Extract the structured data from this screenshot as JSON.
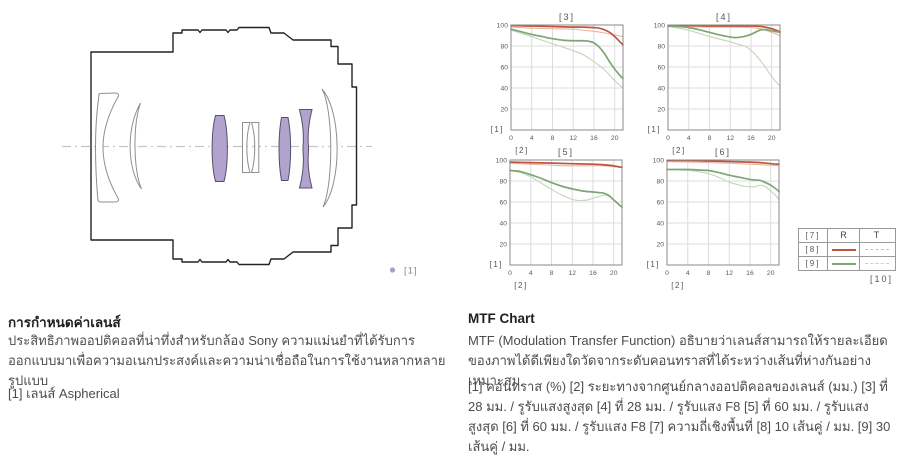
{
  "page": {
    "background": "#ffffff"
  },
  "lens_panel": {
    "marker_label": "[1]",
    "aspherical_fill": "#b1a3cd",
    "aspherical_stroke": "#55506b",
    "element_outline": "#8f8f8f",
    "barrel_outline": "#222222",
    "axis_color": "#c6c6c6",
    "marker_dot_color": "#a89fc7"
  },
  "left_section": {
    "title": "การกำหนดค่าเลนส์",
    "body": "ประสิทธิภาพออปติคอลที่น่าทึ่งสำหรับกล้อง Sony ความแม่นยำที่ได้รับการออกแบบมาเพื่อความอเนกประสงค์และความน่าเชื่อถือในการใช้งานหลากหลายรูปแบบ",
    "footnote": "[1] เลนส์ Aspherical"
  },
  "right_section": {
    "title": "MTF Chart",
    "body": "MTF (Modulation Transfer Function) อธิบายว่าเลนส์สามารถให้รายละเอียดของภาพได้ดีเพียงใดวัดจากระดับคอนทราสที่ได้ระหว่างเส้นที่ห่างกันอย่างเหมาะสม",
    "key": "[1] คอนทราส (%) [2] ระยะทางจากศูนย์กลางออปติคอลของเลนส์ (มม.) [3] ที่ 28 มม. / รูรับแสงสูงสุด [4] ที่ 28 มม. / รูรับแสง F8 [5] ที่ 60 มม. / รูรับแสงสูงสุด [6] ที่ 60 มม. / รูรับแสง F8 [7] ความถี่เชิงพื้นที่ [8] 10 เส้นคู่ / มม. [9] 30 เส้นคู่ / มม."
  },
  "colors": {
    "r10": "#c0543d",
    "t10": "#ecb5a3",
    "r30": "#7ca674",
    "t30": "#c3d6b8",
    "grid": "#dcdcdc",
    "border": "#8a8a8a",
    "tick_text": "#5a5a5a"
  },
  "legend": {
    "header": [
      "[7]",
      "R",
      "T"
    ],
    "rows": [
      {
        "label": "[8]",
        "r_color": "#c0543d",
        "t_color": "#ecb5a3"
      },
      {
        "label": "[9]",
        "r_color": "#7ca674",
        "t_color": "#c3d6b8"
      }
    ],
    "note": "[10]"
  },
  "chart_data": [
    {
      "type": "line",
      "title": "[3]",
      "ylabel": "[1]",
      "xlabel": "[2]",
      "xlim": [
        0,
        21.6
      ],
      "ylim": [
        0,
        100
      ],
      "x_ticks": [
        0,
        4,
        8,
        12,
        16,
        20
      ],
      "y_ticks": [
        20,
        40,
        60,
        80,
        100
      ],
      "grid": true,
      "legend_position": "external-table",
      "series": [
        {
          "name": "R 10 lines/mm",
          "color_key": "r10",
          "points": [
            [
              0,
              99.5
            ],
            [
              4,
              99
            ],
            [
              8,
              98.5
            ],
            [
              12,
              98
            ],
            [
              14,
              98
            ],
            [
              16,
              97.5
            ],
            [
              17,
              97
            ],
            [
              18,
              95.5
            ],
            [
              19,
              93
            ],
            [
              20,
              89
            ],
            [
              21,
              84
            ],
            [
              21.6,
              81
            ]
          ]
        },
        {
          "name": "T 10 lines/mm",
          "color_key": "t10",
          "points": [
            [
              0,
              98
            ],
            [
              4,
              97
            ],
            [
              8,
              96.5
            ],
            [
              12,
              96
            ],
            [
              14,
              95
            ],
            [
              16,
              94
            ],
            [
              18,
              92.5
            ],
            [
              20,
              90.5
            ],
            [
              21.6,
              89
            ]
          ]
        },
        {
          "name": "R 30 lines/mm",
          "color_key": "r30",
          "points": [
            [
              0,
              96
            ],
            [
              2,
              93.5
            ],
            [
              4,
              91
            ],
            [
              6,
              89
            ],
            [
              8,
              87
            ],
            [
              10,
              85.5
            ],
            [
              12,
              85
            ],
            [
              14,
              85
            ],
            [
              15,
              84.5
            ],
            [
              16,
              83
            ],
            [
              17,
              79
            ],
            [
              18,
              73
            ],
            [
              19,
              65
            ],
            [
              20,
              58
            ],
            [
              21,
              52
            ],
            [
              21.6,
              49
            ]
          ]
        },
        {
          "name": "T 30 lines/mm",
          "color_key": "t30",
          "points": [
            [
              0,
              95
            ],
            [
              2,
              92
            ],
            [
              4,
              89
            ],
            [
              6,
              85.5
            ],
            [
              8,
              82
            ],
            [
              10,
              79
            ],
            [
              12,
              75.5
            ],
            [
              14,
              71.5
            ],
            [
              16,
              65
            ],
            [
              18,
              57.5
            ],
            [
              20,
              47
            ],
            [
              21.6,
              40
            ]
          ]
        }
      ]
    },
    {
      "type": "line",
      "title": "[4]",
      "ylabel": "[1]",
      "xlabel": "[2]",
      "xlim": [
        0,
        21.6
      ],
      "ylim": [
        0,
        100
      ],
      "x_ticks": [
        0,
        4,
        8,
        12,
        16,
        20
      ],
      "y_ticks": [
        20,
        40,
        60,
        80,
        100
      ],
      "grid": true,
      "legend_position": "external-table",
      "series": [
        {
          "name": "R 10 lines/mm",
          "color_key": "r10",
          "points": [
            [
              0,
              99.5
            ],
            [
              4,
              99.5
            ],
            [
              8,
              99
            ],
            [
              12,
              99
            ],
            [
              16,
              99
            ],
            [
              18,
              98.5
            ],
            [
              20,
              96.5
            ],
            [
              21.6,
              93.5
            ]
          ]
        },
        {
          "name": "T 10 lines/mm",
          "color_key": "t10",
          "points": [
            [
              0,
              99
            ],
            [
              4,
              98.5
            ],
            [
              8,
              98
            ],
            [
              12,
              98
            ],
            [
              16,
              97.5
            ],
            [
              18,
              96
            ],
            [
              20,
              93
            ],
            [
              21.6,
              90
            ]
          ]
        },
        {
          "name": "R 30 lines/mm",
          "color_key": "r30",
          "points": [
            [
              0,
              99
            ],
            [
              2,
              98.5
            ],
            [
              4,
              97.5
            ],
            [
              6,
              95.5
            ],
            [
              8,
              93
            ],
            [
              10,
              90.5
            ],
            [
              12,
              88.5
            ],
            [
              13,
              88
            ],
            [
              14,
              88.5
            ],
            [
              15,
              89.5
            ],
            [
              16,
              91
            ],
            [
              17,
              93.5
            ],
            [
              18,
              95.5
            ],
            [
              19,
              95.5
            ],
            [
              20,
              94.5
            ],
            [
              21.6,
              93
            ]
          ]
        },
        {
          "name": "T 30 lines/mm",
          "color_key": "t30",
          "points": [
            [
              0,
              98.5
            ],
            [
              2,
              97
            ],
            [
              4,
              95
            ],
            [
              6,
              92
            ],
            [
              8,
              89
            ],
            [
              10,
              86.5
            ],
            [
              12,
              84
            ],
            [
              14,
              81
            ],
            [
              15,
              79.5
            ],
            [
              16,
              76
            ],
            [
              17,
              71
            ],
            [
              18,
              65
            ],
            [
              19,
              58
            ],
            [
              20,
              51
            ],
            [
              21,
              45
            ],
            [
              21.6,
              42
            ]
          ]
        }
      ]
    },
    {
      "type": "line",
      "title": "[5]",
      "ylabel": "[1]",
      "xlabel": "[2]",
      "xlim": [
        0,
        21.6
      ],
      "ylim": [
        0,
        100
      ],
      "x_ticks": [
        0,
        4,
        8,
        12,
        16,
        20
      ],
      "y_ticks": [
        20,
        40,
        60,
        80,
        100
      ],
      "grid": true,
      "legend_position": "external-table",
      "series": [
        {
          "name": "R 10 lines/mm",
          "color_key": "r10",
          "points": [
            [
              0,
              98
            ],
            [
              4,
              97.5
            ],
            [
              8,
              97
            ],
            [
              12,
              96.5
            ],
            [
              16,
              96
            ],
            [
              18,
              95.5
            ],
            [
              20,
              94.5
            ],
            [
              21.6,
              93
            ]
          ]
        },
        {
          "name": "T 10 lines/mm",
          "color_key": "t10",
          "points": [
            [
              0,
              97
            ],
            [
              4,
              96
            ],
            [
              8,
              95
            ],
            [
              10,
              94.5
            ],
            [
              12,
              94.5
            ],
            [
              16,
              94.5
            ],
            [
              18,
              94.5
            ],
            [
              20,
              93.5
            ],
            [
              21.6,
              93
            ]
          ]
        },
        {
          "name": "R 30 lines/mm",
          "color_key": "r30",
          "points": [
            [
              0,
              90
            ],
            [
              2,
              89
            ],
            [
              4,
              86
            ],
            [
              6,
              82.5
            ],
            [
              8,
              78.5
            ],
            [
              10,
              75
            ],
            [
              12,
              72.5
            ],
            [
              14,
              70.5
            ],
            [
              16,
              69.5
            ],
            [
              17,
              69
            ],
            [
              18,
              68.5
            ],
            [
              19,
              66.5
            ],
            [
              20,
              62
            ],
            [
              21,
              57.5
            ],
            [
              21.6,
              55
            ]
          ]
        },
        {
          "name": "T 30 lines/mm",
          "color_key": "t30",
          "points": [
            [
              0,
              90
            ],
            [
              2,
              88
            ],
            [
              4,
              84
            ],
            [
              6,
              78
            ],
            [
              8,
              72
            ],
            [
              10,
              66.5
            ],
            [
              12,
              62.5
            ],
            [
              13,
              61.5
            ],
            [
              14,
              61.5
            ],
            [
              15,
              62
            ],
            [
              16,
              63.5
            ],
            [
              17,
              65
            ],
            [
              18,
              66.5
            ],
            [
              19,
              65.5
            ],
            [
              20,
              62.5
            ],
            [
              21,
              58
            ],
            [
              21.6,
              55.5
            ]
          ]
        }
      ]
    },
    {
      "type": "line",
      "title": "[6]",
      "ylabel": "[1]",
      "xlabel": "[2]",
      "xlim": [
        0,
        21.6
      ],
      "ylim": [
        0,
        100
      ],
      "x_ticks": [
        0,
        4,
        8,
        12,
        16,
        20
      ],
      "y_ticks": [
        20,
        40,
        60,
        80,
        100
      ],
      "grid": true,
      "legend_position": "external-table",
      "series": [
        {
          "name": "R 10 lines/mm",
          "color_key": "r10",
          "points": [
            [
              0,
              99.5
            ],
            [
              4,
              99.5
            ],
            [
              8,
              99
            ],
            [
              12,
              98.5
            ],
            [
              16,
              98
            ],
            [
              18,
              97.5
            ],
            [
              20,
              96.5
            ],
            [
              21.6,
              96
            ]
          ]
        },
        {
          "name": "T 10 lines/mm",
          "color_key": "t10",
          "points": [
            [
              0,
              98.5
            ],
            [
              4,
              98
            ],
            [
              8,
              97.5
            ],
            [
              12,
              97
            ],
            [
              16,
              96
            ],
            [
              18,
              95.5
            ],
            [
              20,
              95
            ],
            [
              21.6,
              94.5
            ]
          ]
        },
        {
          "name": "R 30 lines/mm",
          "color_key": "r30",
          "points": [
            [
              0,
              91
            ],
            [
              4,
              91
            ],
            [
              6,
              90.5
            ],
            [
              8,
              90
            ],
            [
              10,
              88
            ],
            [
              12,
              85.5
            ],
            [
              14,
              83.5
            ],
            [
              16,
              81.5
            ],
            [
              17,
              81
            ],
            [
              18,
              80.5
            ],
            [
              19,
              78.5
            ],
            [
              20,
              76
            ],
            [
              21,
              72.5
            ],
            [
              21.6,
              70
            ]
          ]
        },
        {
          "name": "T 30 lines/mm",
          "color_key": "t30",
          "points": [
            [
              0,
              91
            ],
            [
              4,
              90
            ],
            [
              6,
              89
            ],
            [
              8,
              87
            ],
            [
              10,
              83.5
            ],
            [
              12,
              79
            ],
            [
              14,
              76
            ],
            [
              15,
              75
            ],
            [
              16,
              74.5
            ],
            [
              17,
              74.5
            ],
            [
              18,
              76
            ],
            [
              19,
              74.5
            ],
            [
              20,
              70.5
            ],
            [
              21,
              66
            ],
            [
              21.6,
              62
            ]
          ]
        }
      ]
    }
  ]
}
